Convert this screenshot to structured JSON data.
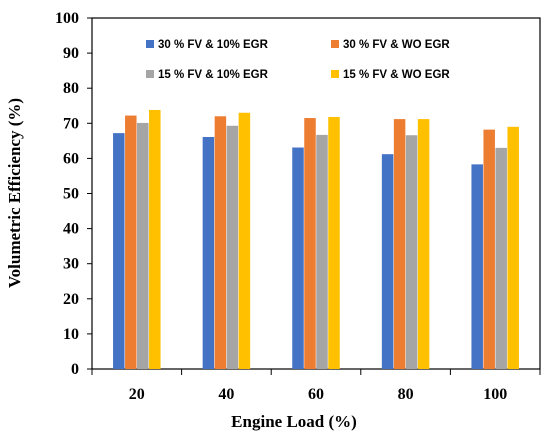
{
  "chart_data": {
    "type": "bar",
    "title": "",
    "xlabel": "Engine Load (%)",
    "ylabel": "Volumetric Efficiency (%)",
    "ylim": [
      0,
      100
    ],
    "yticks": [
      0,
      10,
      20,
      30,
      40,
      50,
      60,
      70,
      80,
      90,
      100
    ],
    "categories": [
      "20",
      "40",
      "60",
      "80",
      "100"
    ],
    "grid": false,
    "legend_position": "top",
    "series": [
      {
        "name": "30 % FV & 10% EGR",
        "color": "#4472C4",
        "values": [
          67.2,
          66.1,
          63.1,
          61.2,
          58.3
        ]
      },
      {
        "name": "30 % FV & WO EGR",
        "color": "#ED7D31",
        "values": [
          72.2,
          72.0,
          71.5,
          71.2,
          68.2
        ]
      },
      {
        "name": "15 % FV & 10% EGR",
        "color": "#A5A5A5",
        "values": [
          70.1,
          69.3,
          66.7,
          66.6,
          63.0
        ]
      },
      {
        "name": "15 % FV & WO EGR",
        "color": "#FFC000",
        "values": [
          73.8,
          73.0,
          71.8,
          71.2,
          69.0
        ]
      }
    ]
  }
}
